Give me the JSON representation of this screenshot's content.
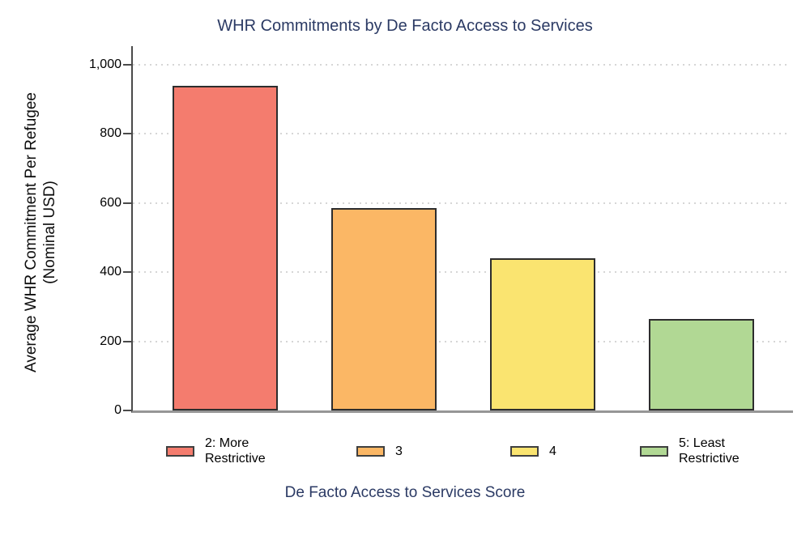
{
  "chart_data": {
    "type": "bar",
    "title": "WHR Commitments by De Facto Access to Services",
    "xlabel": "De Facto Access to Services Score",
    "ylabel": "Average WHR Commitment Per Refugee (Nominal USD)",
    "ylabel_lines": [
      "Average WHR Commitment Per Refugee",
      "(Nominal USD)"
    ],
    "categories": [
      "2: More Restrictive",
      "3",
      "4",
      "5: Least Restrictive"
    ],
    "values": [
      940,
      585,
      440,
      265
    ],
    "bar_colors": [
      "#f47c6e",
      "#fbb765",
      "#fae470",
      "#b1d894"
    ],
    "bar_border_color": "#2d2d2d",
    "ylim": [
      0,
      1050
    ],
    "yticks": [
      0,
      200,
      400,
      600,
      800,
      1000
    ],
    "ytick_labels": [
      "0",
      "200",
      "400",
      "600",
      "800",
      "1,000"
    ],
    "grid": "horizontal dotted gridlines at each y tick, no vertical gridlines",
    "legend_position": "bottom",
    "accent_text_color": "#2b3a64"
  }
}
